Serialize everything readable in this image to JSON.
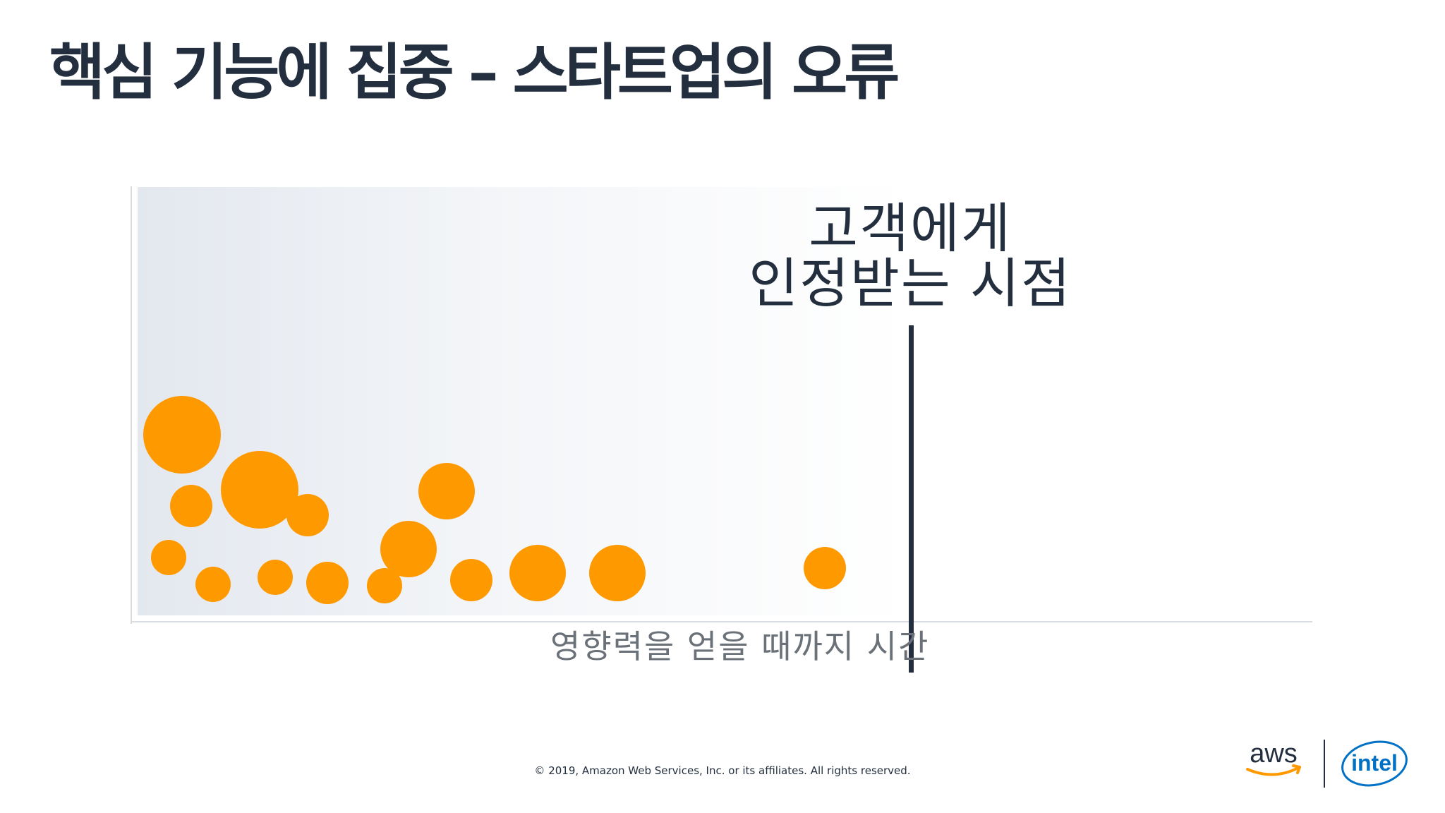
{
  "slide": {
    "title": "핵심 기능에 집중 – 스타트업의 오류",
    "marker_label_line1": "고객에게",
    "marker_label_line2": "인정받는 시점",
    "x_axis_label": "영향력을 얻을 때까지 시간",
    "copyright": "© 2019, Amazon Web Services, Inc. or its affiliates. All rights reserved."
  },
  "logos": {
    "aws": "aws",
    "intel": "intel"
  },
  "colors": {
    "title": "#232f3e",
    "bubble": "#ff9900",
    "marker": "#232f3e",
    "axis_label": "#6b7178"
  }
}
